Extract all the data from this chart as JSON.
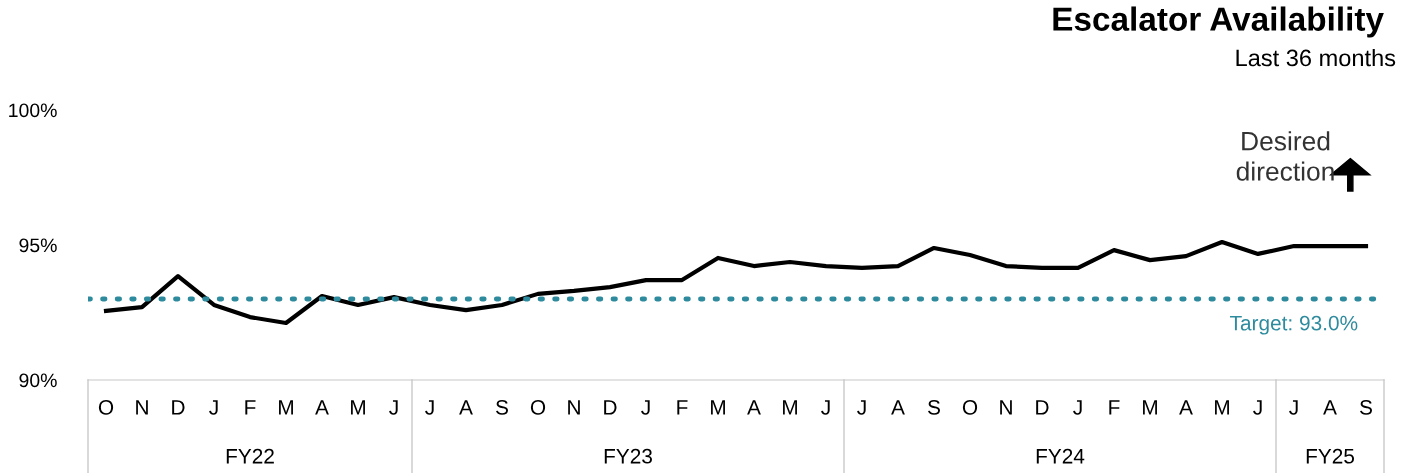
{
  "chart_data": {
    "type": "line",
    "title": "Escalator Availability",
    "subtitle": "Last 36 months",
    "categories": [
      "O",
      "N",
      "D",
      "J",
      "F",
      "M",
      "A",
      "M",
      "J",
      "J",
      "A",
      "S",
      "O",
      "N",
      "D",
      "J",
      "F",
      "M",
      "A",
      "M",
      "J",
      "J",
      "A",
      "S",
      "O",
      "N",
      "D",
      "J",
      "F",
      "M",
      "A",
      "M",
      "J",
      "J",
      "A",
      "S"
    ],
    "series": [
      {
        "color": "#000000",
        "values": [
          92.56,
          92.7,
          93.85,
          92.78,
          92.33,
          92.11,
          93.11,
          92.78,
          93.07,
          92.78,
          92.59,
          92.78,
          93.19,
          93.3,
          93.44,
          93.7,
          93.7,
          94.52,
          94.22,
          94.37,
          94.22,
          94.15,
          94.22,
          94.89,
          94.63,
          94.22,
          94.15,
          94.15,
          94.81,
          94.44,
          94.59,
          95.11,
          94.67,
          94.96,
          94.96,
          94.96
        ]
      }
    ],
    "ylim": [
      90,
      100
    ],
    "yticks": [
      {
        "value": 90,
        "label": "90%"
      },
      {
        "value": 95,
        "label": "95%"
      },
      {
        "value": 100,
        "label": "100%"
      }
    ],
    "ref_lines": [
      {
        "axis": "y",
        "value": 93.0,
        "label": "Target: 93.0%",
        "color": "#2e8b9e",
        "line_style": "dotted"
      }
    ],
    "annotations": [
      "Desired\ndirection",
      "FY22",
      "FY23",
      "FY24",
      "FY25"
    ],
    "grid": false,
    "legend": false,
    "marker": "none",
    "line_style": "solid"
  }
}
